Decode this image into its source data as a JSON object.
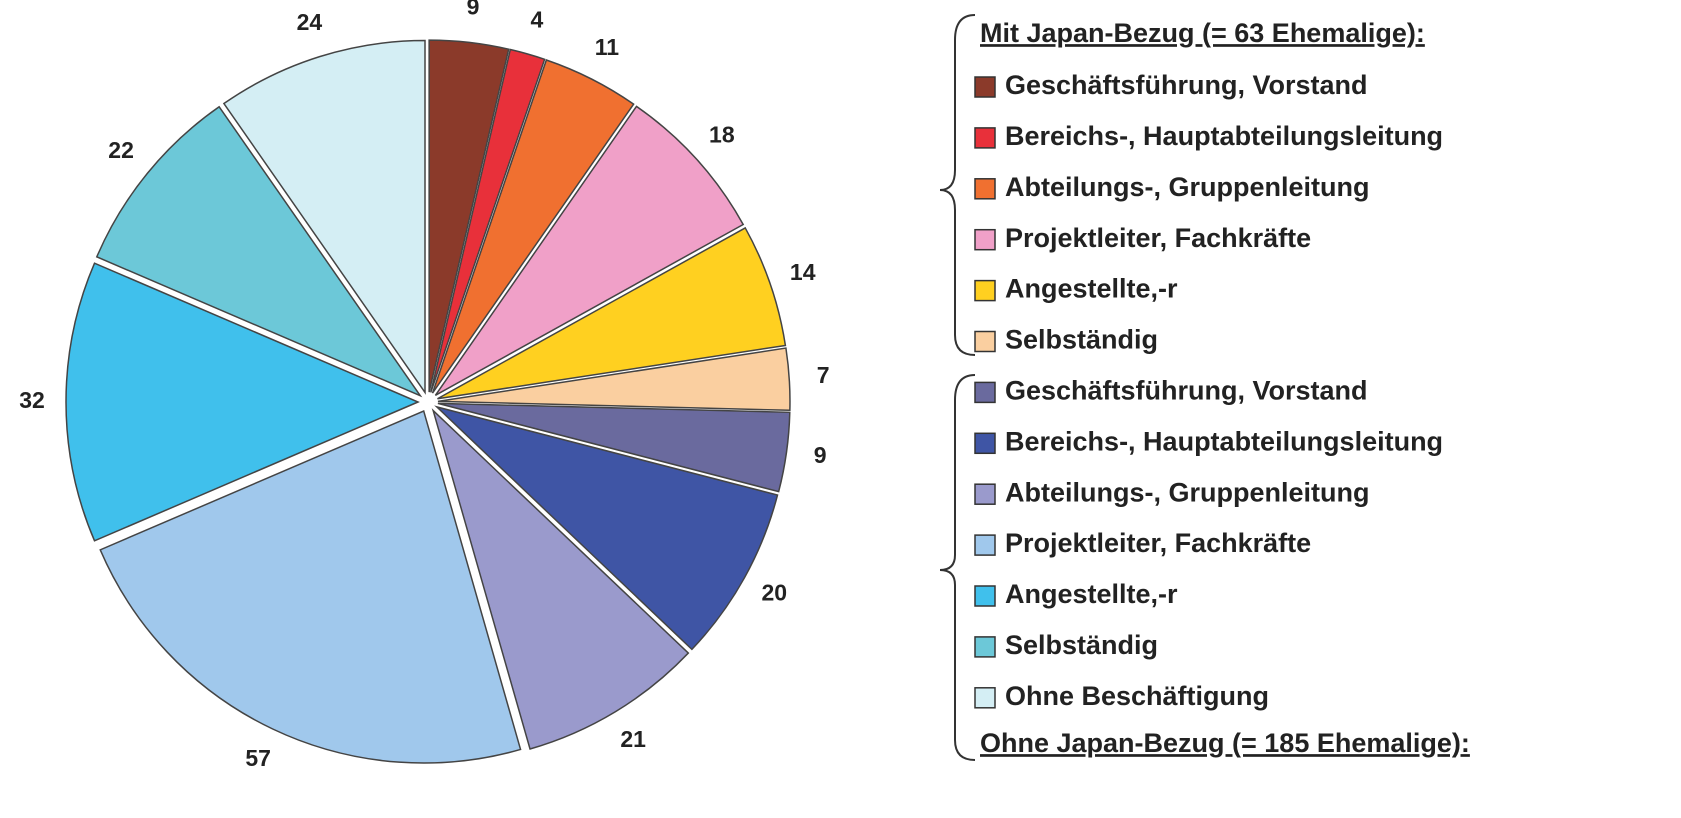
{
  "chart_data": {
    "type": "pie",
    "categories": [
      "Geschäftsführung, Vorstand",
      "Bereichs-, Hauptabteilungsleitung",
      "Abteilungs-, Gruppenleitung",
      "Projektleiter, Fachkräfte",
      "Angestellte,-r",
      "Selbständig",
      "Geschäftsführung, Vorstand",
      "Bereichs-, Hauptabteilungsleitung",
      "Abteilungs-, Gruppenleitung",
      "Projektleiter, Fachkräfte",
      "Angestellte,-r",
      "Selbständig",
      "Ohne Beschäftigung"
    ],
    "values": [
      9,
      4,
      11,
      18,
      14,
      7,
      9,
      20,
      21,
      57,
      32,
      22,
      24
    ],
    "colors": [
      "#8b3a2a",
      "#e8303a",
      "#f07030",
      "#f0a0c8",
      "#ffd020",
      "#facfa0",
      "#6a6a9e",
      "#3f55a5",
      "#9a9acc",
      "#a0c8ec",
      "#40c0ec",
      "#6cc8d8",
      "#d4eef4"
    ],
    "group_titles": [
      "Mit Japan-Bezug (= 63 Ehemalige):",
      "Ohne Japan-Bezug (= 185 Ehemalige):"
    ]
  }
}
